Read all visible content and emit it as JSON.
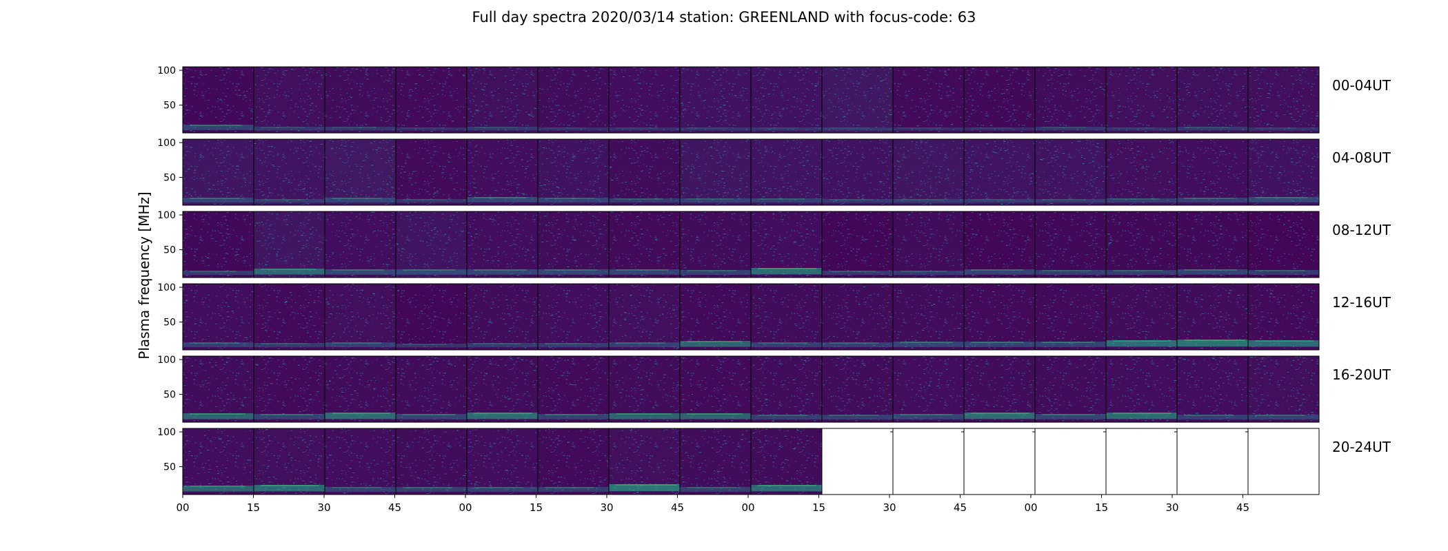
{
  "chart_data": {
    "type": "heatmap",
    "title": "Full day spectra 2020/03/14 station: GREENLAND with focus-code: 63",
    "ylabel": "Plasma frequency [MHz]",
    "xlabel": "",
    "ytick_labels": [
      "100",
      "50"
    ],
    "yticks": [
      100,
      50
    ],
    "ylim": [
      10,
      105
    ],
    "xtick_labels": [
      "00",
      "15",
      "30",
      "45",
      "00",
      "15",
      "30",
      "45",
      "00",
      "15",
      "30",
      "45",
      "00",
      "15",
      "30",
      "45"
    ],
    "panels_per_row": 16,
    "panel_minutes": 15,
    "colormap": [
      "#440154",
      "#482475",
      "#414487",
      "#355f8d",
      "#2a788e",
      "#21918c",
      "#22a884",
      "#44bf70"
    ],
    "rows": [
      {
        "label": "00-04UT",
        "filled_panels": 16,
        "noise_level": [
          0.25,
          0.45,
          0.35,
          0.3,
          0.5,
          0.35,
          0.4,
          0.55,
          0.55,
          0.7,
          0.3,
          0.25,
          0.35,
          0.45,
          0.5,
          0.45
        ],
        "low_band_intensity": [
          0.6,
          0.3,
          0.3,
          0.2,
          0.3,
          0.2,
          0.2,
          0.2,
          0.2,
          0.2,
          0.2,
          0.2,
          0.3,
          0.2,
          0.3,
          0.2
        ]
      },
      {
        "label": "04-08UT",
        "filled_panels": 16,
        "noise_level": [
          0.65,
          0.6,
          0.75,
          0.3,
          0.4,
          0.55,
          0.35,
          0.65,
          0.6,
          0.55,
          0.65,
          0.6,
          0.6,
          0.45,
          0.4,
          0.55
        ],
        "low_band_intensity": [
          0.5,
          0.3,
          0.5,
          0.3,
          0.6,
          0.5,
          0.4,
          0.4,
          0.4,
          0.3,
          0.3,
          0.3,
          0.3,
          0.4,
          0.5,
          0.6
        ]
      },
      {
        "label": "08-12UT",
        "filled_panels": 16,
        "noise_level": [
          0.25,
          0.65,
          0.4,
          0.6,
          0.4,
          0.35,
          0.3,
          0.35,
          0.4,
          0.2,
          0.35,
          0.2,
          0.25,
          0.25,
          0.25,
          0.15
        ],
        "low_band_intensity": [
          0.4,
          0.7,
          0.6,
          0.6,
          0.6,
          0.6,
          0.6,
          0.5,
          0.8,
          0.4,
          0.4,
          0.6,
          0.5,
          0.5,
          0.6,
          0.5
        ]
      },
      {
        "label": "12-16UT",
        "filled_panels": 16,
        "noise_level": [
          0.4,
          0.3,
          0.45,
          0.2,
          0.35,
          0.4,
          0.45,
          0.3,
          0.35,
          0.35,
          0.35,
          0.3,
          0.3,
          0.35,
          0.35,
          0.3
        ],
        "low_band_intensity": [
          0.5,
          0.4,
          0.5,
          0.3,
          0.4,
          0.4,
          0.5,
          0.7,
          0.5,
          0.5,
          0.6,
          0.6,
          0.6,
          0.8,
          0.9,
          0.8
        ]
      },
      {
        "label": "16-20UT",
        "filled_panels": 16,
        "noise_level": [
          0.35,
          0.3,
          0.35,
          0.35,
          0.35,
          0.3,
          0.35,
          0.3,
          0.35,
          0.35,
          0.4,
          0.35,
          0.35,
          0.4,
          0.4,
          0.45
        ],
        "low_band_intensity": [
          0.7,
          0.6,
          0.8,
          0.6,
          0.8,
          0.6,
          0.7,
          0.7,
          0.5,
          0.5,
          0.6,
          0.8,
          0.6,
          0.8,
          0.5,
          0.5
        ]
      },
      {
        "label": "20-24UT",
        "filled_panels": 9,
        "noise_level": [
          0.4,
          0.45,
          0.4,
          0.35,
          0.4,
          0.3,
          0.45,
          0.35,
          0.35
        ],
        "low_band_intensity": [
          0.7,
          0.8,
          0.5,
          0.5,
          0.5,
          0.5,
          0.9,
          0.5,
          0.8
        ]
      }
    ]
  }
}
